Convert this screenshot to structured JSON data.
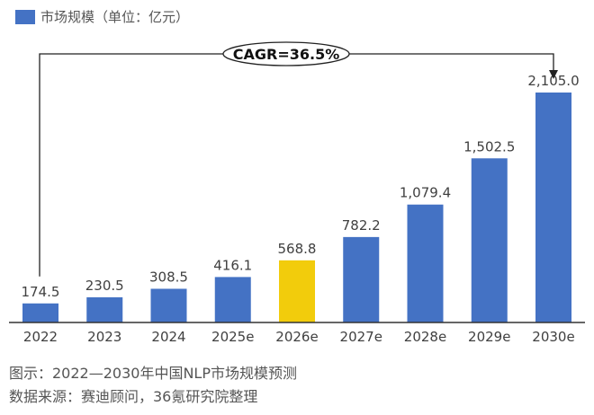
{
  "chart_data": {
    "type": "bar",
    "categories": [
      "2022",
      "2023",
      "2024",
      "2025e",
      "2026e",
      "2027e",
      "2028e",
      "2029e",
      "2030e"
    ],
    "series": [
      {
        "name": "市场规模（单位：亿元）",
        "values": [
          174.5,
          230.5,
          308.5,
          416.1,
          568.8,
          782.2,
          1079.4,
          1502.5,
          2105.0
        ]
      }
    ],
    "value_labels": [
      "174.5",
      "230.5",
      "308.5",
      "416.1",
      "568.8",
      "782.2",
      "1,079.4",
      "1,502.5",
      "2,105.0"
    ],
    "highlight_category": "2026e",
    "colors": {
      "bar": "#4472c4",
      "highlight": "#f2cc0c"
    },
    "annotation": "CAGR=36.5%",
    "ylim": [
      0,
      2105
    ],
    "legend_position": "top-left",
    "grid": false
  },
  "captions": {
    "title": "图示：2022—2030年中国NLP市场规模预测",
    "source": "数据来源：赛迪顾问，36氪研究院整理"
  }
}
